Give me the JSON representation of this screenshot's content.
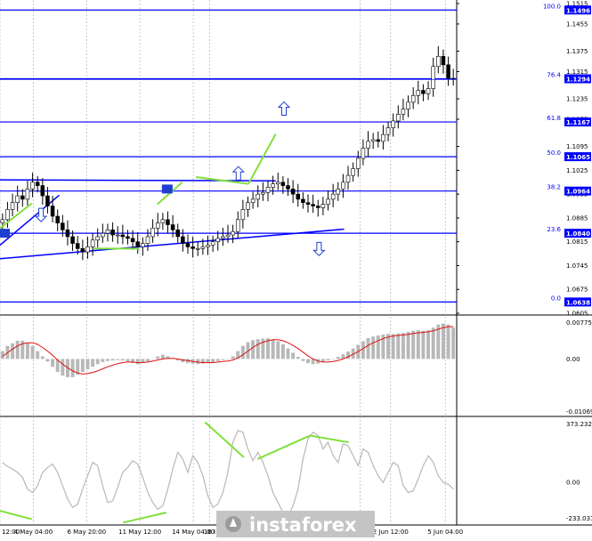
{
  "chart_data": {
    "type": "candlestick",
    "instrument_note": "",
    "main": {
      "ylim": [
        1.0605,
        1.1515
      ],
      "y_ticks": [
        "1.1515",
        "1.1455",
        "1.1375",
        "1.1315",
        "1.1235",
        "1.1175",
        "1.1095",
        "1.1025",
        "1.0955",
        "1.0885",
        "1.0815",
        "1.0745",
        "1.0675",
        "1.0605"
      ],
      "fib_levels": [
        {
          "ratio": "100.0",
          "price": "1.1496",
          "value": 1.1496
        },
        {
          "ratio": "76.4",
          "price": "1.1294",
          "value": 1.1294
        },
        {
          "ratio": "61.8",
          "price": "1.1167",
          "value": 1.1167
        },
        {
          "ratio": "50.0",
          "price": "1.1065",
          "value": 1.1065
        },
        {
          "ratio": "38.2",
          "price": "1.0964",
          "value": 1.0964
        },
        {
          "ratio": "23.6",
          "price": "1.0840",
          "value": 1.084
        },
        {
          "ratio": "0.0",
          "price": "1.0638",
          "value": 1.0638
        }
      ],
      "current_price": 1.1292,
      "price_path": [
        1.088,
        1.091,
        1.093,
        1.095,
        1.094,
        1.097,
        1.099,
        1.098,
        1.095,
        1.092,
        1.089,
        1.087,
        1.085,
        1.083,
        1.081,
        1.0795,
        1.0785,
        1.08,
        1.082,
        1.083,
        1.084,
        1.085,
        1.0835,
        1.0835,
        1.083,
        1.0825,
        1.0815,
        1.08,
        1.081,
        1.083,
        1.0855,
        1.087,
        1.088,
        1.0865,
        1.085,
        1.083,
        1.081,
        1.08,
        1.0795,
        1.0795,
        1.08,
        1.0805,
        1.0815,
        1.0825,
        1.083,
        1.0835,
        1.0845,
        1.088,
        1.091,
        1.093,
        1.094,
        1.0955,
        1.096,
        1.0975,
        1.0985,
        1.099,
        1.098,
        1.097,
        1.0955,
        1.094,
        1.093,
        1.0925,
        1.092,
        1.0915,
        1.0925,
        1.094,
        1.0955,
        1.097,
        1.099,
        1.101,
        1.103,
        1.106,
        1.109,
        1.111,
        1.1115,
        1.111,
        1.113,
        1.115,
        1.117,
        1.119,
        1.1205,
        1.1225,
        1.1245,
        1.126,
        1.125,
        1.1265,
        1.133,
        1.136,
        1.1335,
        1.1295,
        1.1292
      ],
      "trend_lines": [
        {
          "name": "support-trendline",
          "color": "#0000ff",
          "from": [
            0.0,
            1.0765
          ],
          "to": [
            0.755,
            1.0852
          ]
        },
        {
          "name": "channel-upper-line",
          "color": "#0000ff",
          "from": [
            0.0,
            1.0805
          ],
          "to": [
            0.13,
            1.0952
          ]
        },
        {
          "name": "resistance-line",
          "color": "#0000ff",
          "from": [
            0.0,
            1.0997
          ],
          "to": [
            0.605,
            1.0994
          ]
        }
      ],
      "divergence_lines": [
        {
          "from": [
            0.0,
            1.0855
          ],
          "to": [
            0.07,
            1.0928
          ]
        },
        {
          "from": [
            0.205,
            1.0795
          ],
          "to": [
            0.305,
            1.0795
          ]
        },
        {
          "from": [
            0.345,
            1.0925
          ],
          "to": [
            0.4,
            1.099
          ]
        },
        {
          "from": [
            0.43,
            1.1005
          ],
          "to": [
            0.545,
            1.0985
          ]
        },
        {
          "from": [
            0.545,
            1.0985
          ],
          "to": [
            0.605,
            1.1132
          ]
        }
      ],
      "arrows": [
        {
          "dir": "down",
          "at": [
            0.09,
            1.0895
          ]
        },
        {
          "dir": "up",
          "at": [
            0.523,
            1.1015
          ]
        },
        {
          "dir": "up",
          "at": [
            0.623,
            1.1205
          ]
        },
        {
          "dir": "down",
          "at": [
            0.7,
            1.0795
          ]
        }
      ],
      "markers": [
        {
          "at": [
            0.008,
            1.084
          ]
        },
        {
          "at": [
            0.365,
            1.097
          ]
        }
      ]
    },
    "macd": {
      "y_ticks": [
        "0.00775",
        "0.00",
        "-0.01069"
      ],
      "ylim": [
        -0.01069,
        0.00775
      ],
      "histogram": [
        0.0015,
        0.0025,
        0.003,
        0.0035,
        0.0035,
        0.003,
        0.0025,
        0.0015,
        0.0005,
        -0.0005,
        -0.0015,
        -0.0025,
        -0.0032,
        -0.0035,
        -0.0035,
        -0.003,
        -0.0025,
        -0.002,
        -0.0015,
        -0.001,
        -0.0006,
        -0.0004,
        -0.0003,
        -0.0002,
        -0.0003,
        -0.0005,
        -0.0008,
        -0.001,
        -0.0008,
        -0.0005,
        0.0,
        0.0005,
        0.0008,
        0.0005,
        0.0002,
        -0.0003,
        -0.0006,
        -0.0008,
        -0.0009,
        -0.001,
        -0.0009,
        -0.0008,
        -0.0006,
        -0.0004,
        -0.0002,
        0.0,
        0.0005,
        0.0015,
        0.0025,
        0.0032,
        0.0036,
        0.0038,
        0.0039,
        0.004,
        0.0038,
        0.0034,
        0.0028,
        0.002,
        0.0012,
        0.0004,
        -0.0004,
        -0.0008,
        -0.001,
        -0.0009,
        -0.0006,
        -0.0003,
        0.0,
        0.0004,
        0.0009,
        0.0014,
        0.002,
        0.0027,
        0.0034,
        0.004,
        0.0043,
        0.0045,
        0.0047,
        0.0048,
        0.0048,
        0.0049,
        0.005,
        0.0052,
        0.0054,
        0.0055,
        0.0054,
        0.0055,
        0.006,
        0.0066,
        0.0068,
        0.0066,
        0.006
      ],
      "signal": [
        0.0005,
        0.0012,
        0.0019,
        0.0025,
        0.0029,
        0.0031,
        0.0031,
        0.0028,
        0.0022,
        0.0015,
        0.0007,
        -0.0002,
        -0.001,
        -0.0017,
        -0.0023,
        -0.0027,
        -0.0029,
        -0.0028,
        -0.0026,
        -0.0023,
        -0.0019,
        -0.0015,
        -0.0012,
        -0.0009,
        -0.0007,
        -0.0006,
        -0.0006,
        -0.0007,
        -0.0007,
        -0.0006,
        -0.0004,
        -0.0002,
        0.0,
        0.0001,
        0.0001,
        0.0,
        -0.0002,
        -0.0003,
        -0.0005,
        -0.0006,
        -0.0007,
        -0.0007,
        -0.0007,
        -0.0006,
        -0.0005,
        -0.0004,
        -0.0002,
        0.0002,
        0.0008,
        0.0015,
        0.0022,
        0.0028,
        0.0032,
        0.0035,
        0.0037,
        0.0037,
        0.0035,
        0.0031,
        0.0026,
        0.002,
        0.0013,
        0.0006,
        0.0,
        -0.0004,
        -0.0006,
        -0.0006,
        -0.0005,
        -0.0003,
        0.0,
        0.0004,
        0.0009,
        0.0014,
        0.002,
        0.0026,
        0.0031,
        0.0035,
        0.0039,
        0.0042,
        0.0044,
        0.0045,
        0.0046,
        0.0047,
        0.0049,
        0.005,
        0.0051,
        0.0052,
        0.0054,
        0.0057,
        0.006,
        0.0062,
        0.0062
      ]
    },
    "cci": {
      "y_ticks": [
        "373.2326",
        "0.00",
        "-233.0373"
      ],
      "ylim": [
        -233.0373,
        373.2326
      ],
      "values": [
        120,
        95,
        80,
        60,
        30,
        -40,
        -60,
        -20,
        60,
        90,
        110,
        60,
        -20,
        -100,
        -150,
        -130,
        -40,
        40,
        120,
        100,
        -20,
        -120,
        -110,
        -30,
        60,
        90,
        130,
        110,
        30,
        -60,
        -120,
        -160,
        -140,
        -40,
        80,
        180,
        140,
        60,
        160,
        120,
        40,
        -80,
        -150,
        -130,
        -60,
        60,
        240,
        310,
        300,
        200,
        130,
        180,
        120,
        40,
        -60,
        -120,
        -180,
        -200,
        -140,
        -40,
        140,
        260,
        300,
        280,
        200,
        240,
        160,
        120,
        230,
        220,
        160,
        100,
        200,
        180,
        100,
        40,
        0,
        60,
        120,
        100,
        -20,
        -60,
        -50,
        20,
        100,
        160,
        120,
        40,
        0,
        -10,
        -40
      ],
      "divergence_lines": [
        {
          "from": [
            0.0,
            -170
          ],
          "to": [
            0.07,
            -220
          ]
        },
        {
          "from": [
            0.27,
            -240
          ],
          "to": [
            0.365,
            -180
          ]
        },
        {
          "from": [
            0.45,
            360
          ],
          "to": [
            0.535,
            150
          ]
        },
        {
          "from": [
            0.565,
            140
          ],
          "to": [
            0.68,
            280
          ]
        },
        {
          "from": [
            0.68,
            280
          ],
          "to": [
            0.765,
            240
          ]
        }
      ]
    },
    "x_tick_labels": [
      {
        "label": "12:00",
        "pos": 0.0
      },
      {
        "label": "4 May 04:00",
        "pos": 0.073
      },
      {
        "label": "6 May 20:00",
        "pos": 0.19
      },
      {
        "label": "11 May 12:00",
        "pos": 0.307
      },
      {
        "label": "14 May 04:00",
        "pos": 0.424
      },
      {
        "label": "18 I",
        "pos": 0.46
      },
      {
        "label": ":00",
        "pos": 0.79
      },
      {
        "label": "2 Jun 12:00",
        "pos": 0.857
      },
      {
        "label": "5 Jun 04:00",
        "pos": 0.977
      }
    ],
    "watermark": "instaforex"
  },
  "colors": {
    "candle": "#000000",
    "fib": "#0000ff",
    "price_box": "#0000ff",
    "current_line": "#0000ff",
    "divergence": "#7fe03a",
    "macd_hist": "#b8b8b8",
    "macd_signal": "#e01010",
    "cci_line": "#b8b8b8",
    "watermark_bg": "#c4c4c4",
    "watermark_mark": "#9c9c9c",
    "grid": "#b0b0b0"
  }
}
